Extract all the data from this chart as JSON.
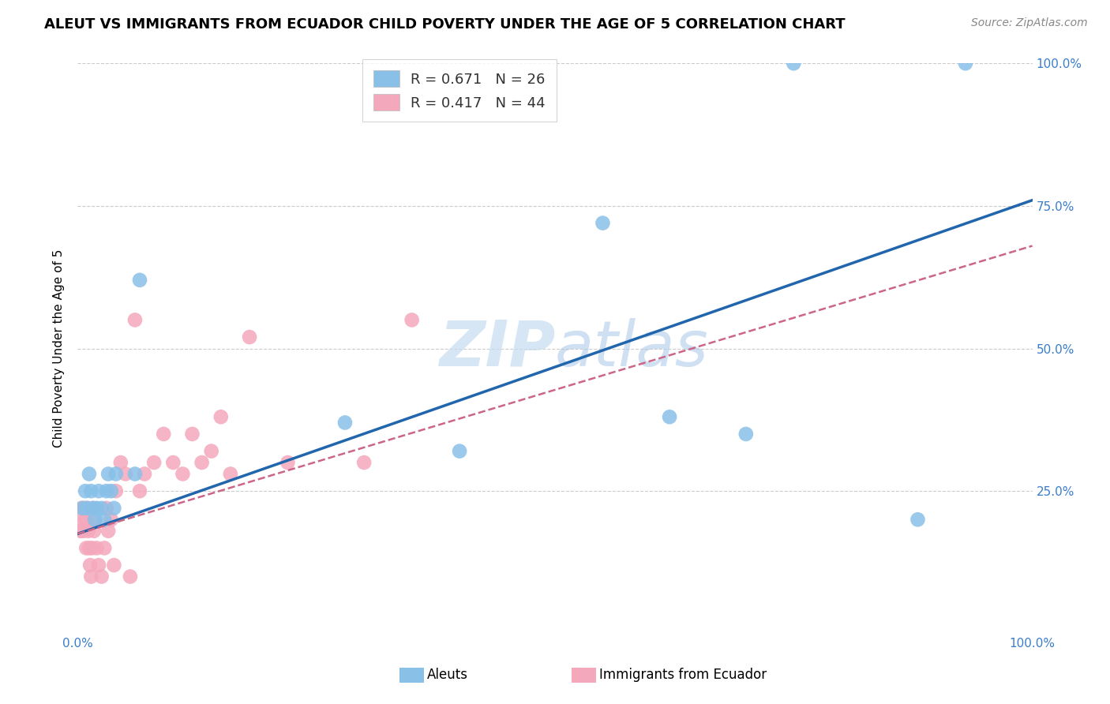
{
  "title": "ALEUT VS IMMIGRANTS FROM ECUADOR CHILD POVERTY UNDER THE AGE OF 5 CORRELATION CHART",
  "source": "Source: ZipAtlas.com",
  "ylabel_label": "Child Poverty Under the Age of 5",
  "legend_label1": "Aleuts",
  "legend_label2": "Immigrants from Ecuador",
  "r1": 0.671,
  "n1": 26,
  "r2": 0.417,
  "n2": 44,
  "aleut_x": [
    0.005,
    0.008,
    0.01,
    0.012,
    0.014,
    0.016,
    0.018,
    0.02,
    0.022,
    0.025,
    0.028,
    0.03,
    0.032,
    0.035,
    0.038,
    0.04,
    0.06,
    0.065,
    0.28,
    0.4,
    0.55,
    0.62,
    0.7,
    0.75,
    0.88,
    0.93
  ],
  "aleut_y": [
    0.22,
    0.25,
    0.22,
    0.28,
    0.25,
    0.22,
    0.2,
    0.22,
    0.25,
    0.22,
    0.2,
    0.25,
    0.28,
    0.25,
    0.22,
    0.28,
    0.28,
    0.62,
    0.37,
    0.32,
    0.72,
    0.38,
    0.35,
    1.0,
    0.2,
    1.0
  ],
  "ecuador_x": [
    0.003,
    0.004,
    0.005,
    0.006,
    0.007,
    0.008,
    0.009,
    0.01,
    0.011,
    0.012,
    0.013,
    0.014,
    0.015,
    0.016,
    0.017,
    0.018,
    0.02,
    0.022,
    0.025,
    0.028,
    0.03,
    0.032,
    0.035,
    0.038,
    0.04,
    0.045,
    0.05,
    0.055,
    0.06,
    0.065,
    0.07,
    0.08,
    0.09,
    0.1,
    0.11,
    0.12,
    0.13,
    0.14,
    0.15,
    0.16,
    0.18,
    0.22,
    0.3,
    0.35
  ],
  "ecuador_y": [
    0.18,
    0.22,
    0.2,
    0.18,
    0.22,
    0.2,
    0.15,
    0.22,
    0.18,
    0.15,
    0.12,
    0.1,
    0.15,
    0.22,
    0.18,
    0.2,
    0.15,
    0.12,
    0.1,
    0.15,
    0.22,
    0.18,
    0.2,
    0.12,
    0.25,
    0.3,
    0.28,
    0.1,
    0.55,
    0.25,
    0.28,
    0.3,
    0.35,
    0.3,
    0.28,
    0.35,
    0.3,
    0.32,
    0.38,
    0.28,
    0.52,
    0.3,
    0.3,
    0.55
  ],
  "aleut_line_start_x": 0.0,
  "aleut_line_start_y": 0.175,
  "aleut_line_end_x": 1.0,
  "aleut_line_end_y": 0.76,
  "ecuador_line_start_x": 0.0,
  "ecuador_line_start_y": 0.175,
  "ecuador_line_end_x": 1.0,
  "ecuador_line_end_y": 0.68,
  "aleut_color": "#88c0e8",
  "ecuador_color": "#f4a8bc",
  "aleut_line_color": "#2166ac",
  "ecuador_line_color": "#cc6688",
  "background_color": "#ffffff",
  "grid_color": "#cccccc",
  "watermark_color": "#c5dcf0",
  "title_fontsize": 13,
  "axis_label_fontsize": 11,
  "tick_fontsize": 11,
  "legend_fontsize": 13,
  "source_fontsize": 10,
  "xlim": [
    0.0,
    1.0
  ],
  "ylim": [
    0.0,
    1.0
  ]
}
